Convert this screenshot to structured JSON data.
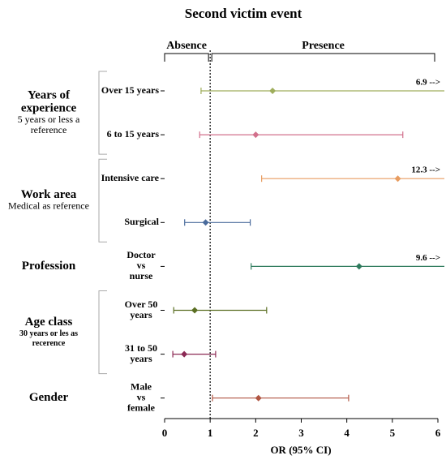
{
  "chart_data": {
    "type": "forest",
    "title": "Second victim event",
    "xlabel": "OR (95% CI)",
    "xlim": [
      0,
      6
    ],
    "xticks": [
      0,
      1,
      2,
      3,
      4,
      5,
      6
    ],
    "reference_line": 1,
    "regions": [
      {
        "label": "Absence",
        "span": [
          0,
          1
        ]
      },
      {
        "label": "Presence",
        "span": [
          1,
          6
        ]
      }
    ],
    "groups": [
      {
        "name": [
          "Years of",
          "experience"
        ],
        "note": [
          "5 years or less a",
          "reference"
        ],
        "rows": [
          {
            "label": [
              "Over 15 years"
            ],
            "or": 2.37,
            "ci": [
              0.8,
              6.9
            ],
            "upper_label": "6.9 -->",
            "color": "#9fae5c"
          },
          {
            "label": [
              "6 to 15 years"
            ],
            "or": 2.0,
            "ci": [
              0.77,
              5.23
            ],
            "color": "#d2708c"
          }
        ]
      },
      {
        "name": [
          "Work area"
        ],
        "note": [
          "Medical as reference"
        ],
        "rows": [
          {
            "label": [
              "Intensive care"
            ],
            "or": 5.12,
            "ci": [
              2.13,
              12.3
            ],
            "upper_label": "12.3 -->",
            "color": "#e89c60"
          },
          {
            "label": [
              "Surgical"
            ],
            "or": 0.9,
            "ci": [
              0.44,
              1.88
            ],
            "color": "#4a6b9c"
          }
        ]
      },
      {
        "name": [
          "Profession"
        ],
        "rows": [
          {
            "label": [
              "Doctor",
              "vs",
              "nurse"
            ],
            "or": 4.27,
            "ci": [
              1.9,
              9.6
            ],
            "upper_label": "9.6 -->",
            "color": "#2e7a5c"
          }
        ]
      },
      {
        "name": [
          "Age class"
        ],
        "note": [
          "30 years or les as",
          "recerence"
        ],
        "rows": [
          {
            "label": [
              "Over 50",
              "years"
            ],
            "or": 0.66,
            "ci": [
              0.2,
              2.24
            ],
            "color": "#5a6e22"
          },
          {
            "label": [
              "31 to 50",
              "years"
            ],
            "or": 0.43,
            "ci": [
              0.18,
              1.12
            ],
            "color": "#8c2a55"
          }
        ]
      },
      {
        "name": [
          "Gender"
        ],
        "rows": [
          {
            "label": [
              "Male",
              "vs",
              "female"
            ],
            "or": 2.06,
            "ci": [
              1.05,
              4.04
            ],
            "color": "#b05542"
          }
        ]
      }
    ]
  }
}
